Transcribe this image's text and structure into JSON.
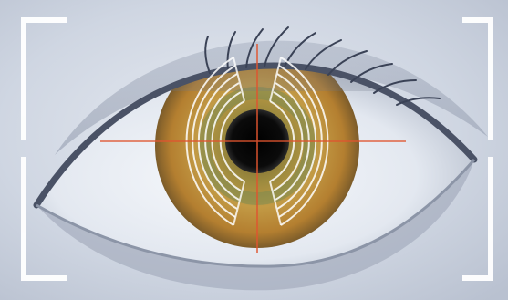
{
  "image": {
    "subject": "eye",
    "overlay": "iris-scan"
  },
  "colors": {
    "background": "#d6dce6",
    "skin": "#c6ccd8",
    "sclera": "#eef1f6",
    "iris": "#b98a35",
    "pupil": "#050505",
    "crosshair": "#e0552f",
    "scan_rings": "#ffffff",
    "corner_brackets": "#ffffff"
  }
}
